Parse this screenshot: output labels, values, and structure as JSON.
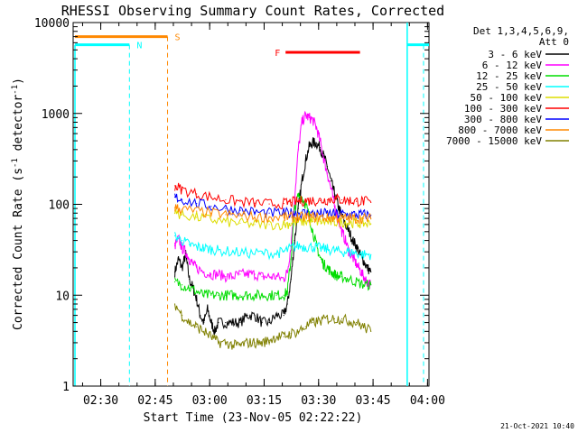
{
  "chart_data": {
    "type": "line",
    "title": "RHESSI Observing Summary Count Rates, Corrected",
    "xlabel": "Start Time (23-Nov-05 02:22:22)",
    "ylabel": "Corrected Count Rate (s",
    "ylabel_sup1": "-1",
    "ylabel_mid": " detector",
    "ylabel_sup2": "-1",
    "ylabel_end": ")",
    "x_unit": "minutes since 02:22:22",
    "xlim": [
      0,
      98
    ],
    "yscale": "log",
    "ylim": [
      1,
      10000
    ],
    "x_ticks": [
      {
        "label": "02:30",
        "value": 7.6
      },
      {
        "label": "02:45",
        "value": 22.6
      },
      {
        "label": "03:00",
        "value": 37.6
      },
      {
        "label": "03:15",
        "value": 52.6
      },
      {
        "label": "03:30",
        "value": 67.6
      },
      {
        "label": "03:45",
        "value": 82.6
      },
      {
        "label": "04:00",
        "value": 97.6
      }
    ],
    "y_ticks": [
      {
        "label": "1",
        "value": 1
      },
      {
        "label": "10",
        "value": 10
      },
      {
        "label": "100",
        "value": 100
      },
      {
        "label": "1000",
        "value": 1000
      },
      {
        "label": "10000",
        "value": 10000
      }
    ],
    "legend_header": [
      "Det 1,3,4,5,6,9,",
      "Att 0"
    ],
    "legend_position": "right",
    "timestamp": "21-Oct-2021 10:40",
    "series": [
      {
        "name": "3 - 6 keV",
        "color": "#000000",
        "x": [
          28,
          29,
          30,
          31,
          32,
          33,
          34,
          35,
          36,
          37,
          38,
          39,
          40,
          42,
          44,
          46,
          48,
          50,
          52,
          54,
          56,
          58,
          59,
          60,
          61,
          62,
          63,
          64,
          65,
          66,
          67,
          68,
          69,
          70,
          71,
          72,
          73,
          74,
          75,
          76,
          77,
          78,
          79,
          80,
          81,
          82
        ],
        "values": [
          18,
          25,
          20,
          28,
          15,
          12,
          9,
          6,
          5,
          7,
          5,
          4,
          5,
          5,
          5,
          5,
          6,
          6,
          5,
          5,
          6,
          6,
          8,
          15,
          40,
          90,
          180,
          300,
          430,
          480,
          470,
          420,
          340,
          260,
          180,
          130,
          95,
          75,
          60,
          50,
          40,
          35,
          28,
          24,
          20,
          18
        ]
      },
      {
        "name": "6 - 12 keV",
        "color": "#ff00ff",
        "x": [
          28,
          29,
          30,
          31,
          32,
          33,
          34,
          36,
          38,
          40,
          42,
          44,
          46,
          48,
          50,
          52,
          54,
          56,
          58,
          59,
          60,
          61,
          62,
          63,
          64,
          65,
          66,
          67,
          68,
          69,
          70,
          71,
          72,
          73,
          74,
          75,
          76,
          77,
          78,
          79,
          80,
          81,
          82
        ],
        "values": [
          35,
          42,
          33,
          30,
          25,
          22,
          20,
          18,
          17,
          17,
          16,
          16,
          17,
          17,
          17,
          16,
          16,
          16,
          15,
          18,
          35,
          120,
          400,
          800,
          950,
          900,
          850,
          700,
          500,
          320,
          220,
          150,
          95,
          70,
          50,
          40,
          30,
          26,
          22,
          19,
          16,
          14,
          13
        ]
      },
      {
        "name": "12 - 25 keV",
        "color": "#00dd00",
        "x": [
          28,
          30,
          32,
          34,
          36,
          38,
          40,
          42,
          44,
          46,
          48,
          50,
          52,
          54,
          56,
          58,
          59,
          60,
          61,
          62,
          63,
          64,
          65,
          66,
          67,
          68,
          69,
          70,
          71,
          72,
          73,
          74,
          76,
          78,
          80,
          82
        ],
        "values": [
          14,
          13,
          12,
          11,
          10,
          10,
          10,
          10,
          10,
          10,
          10,
          10,
          10,
          10,
          10,
          10,
          11,
          25,
          90,
          125,
          120,
          100,
          75,
          50,
          35,
          26,
          22,
          20,
          18,
          17,
          16,
          16,
          15,
          14,
          13,
          13
        ]
      },
      {
        "name": "25 - 50 keV",
        "color": "#00ffff",
        "x": [
          28,
          30,
          32,
          34,
          36,
          38,
          40,
          44,
          48,
          52,
          56,
          58,
          60,
          62,
          64,
          66,
          68,
          70,
          72,
          74,
          76,
          78,
          80,
          82
        ],
        "values": [
          45,
          40,
          36,
          34,
          33,
          32,
          31,
          30,
          29,
          29,
          29,
          30,
          33,
          35,
          34,
          34,
          33,
          32,
          31,
          30,
          30,
          29,
          28,
          28
        ]
      },
      {
        "name": "50 - 100 keV",
        "color": "#dddd00",
        "x": [
          28,
          30,
          34,
          38,
          42,
          46,
          50,
          54,
          58,
          60,
          62,
          64,
          66,
          68,
          70,
          72,
          74,
          76,
          78,
          80,
          82
        ],
        "values": [
          80,
          77,
          72,
          68,
          64,
          62,
          60,
          60,
          60,
          62,
          64,
          65,
          65,
          65,
          64,
          64,
          64,
          63,
          62,
          62,
          61
        ]
      },
      {
        "name": "100 - 300 keV",
        "color": "#ff0000",
        "x": [
          28,
          30,
          34,
          38,
          42,
          46,
          50,
          54,
          58,
          60,
          62,
          64,
          66,
          68,
          70,
          72,
          74,
          76,
          78,
          80,
          82
        ],
        "values": [
          160,
          145,
          130,
          120,
          112,
          107,
          103,
          101,
          102,
          105,
          108,
          110,
          110,
          110,
          112,
          115,
          112,
          110,
          108,
          108,
          105
        ]
      },
      {
        "name": "300 - 800 keV",
        "color": "#0000ff",
        "x": [
          28,
          30,
          34,
          38,
          42,
          46,
          50,
          54,
          58,
          60,
          62,
          64,
          66,
          68,
          70,
          72,
          74,
          76,
          78,
          80,
          82
        ],
        "values": [
          120,
          113,
          102,
          95,
          90,
          86,
          82,
          80,
          80,
          80,
          80,
          80,
          79,
          79,
          79,
          78,
          78,
          77,
          77,
          77,
          76
        ]
      },
      {
        "name": "800 - 7000 keV",
        "color": "#ff8800",
        "x": [
          28,
          30,
          34,
          38,
          42,
          46,
          50,
          54,
          58,
          60,
          62,
          64,
          66,
          68,
          70,
          72,
          74,
          76,
          78,
          80,
          82
        ],
        "values": [
          92,
          88,
          84,
          80,
          77,
          75,
          73,
          72,
          72,
          72,
          72,
          72,
          72,
          72,
          71,
          71,
          70,
          70,
          70,
          70,
          69
        ]
      },
      {
        "name": "7000 - 15000 keV",
        "color": "#808000",
        "x": [
          28,
          30,
          32,
          34,
          36,
          38,
          40,
          42,
          44,
          46,
          48,
          50,
          52,
          54,
          56,
          58,
          60,
          62,
          64,
          66,
          68,
          70,
          72,
          74,
          76,
          78,
          80,
          82
        ],
        "values": [
          8,
          6,
          5,
          4.5,
          4,
          3.5,
          3,
          3,
          2.8,
          2.8,
          3,
          3,
          3,
          3.2,
          3.5,
          3.5,
          3.8,
          4,
          4.5,
          5,
          5.2,
          5.5,
          5.5,
          5.5,
          5.2,
          5,
          4.5,
          4
        ]
      }
    ],
    "annotations": [
      {
        "label": "S",
        "color": "#ff8800",
        "x_start": 0.5,
        "x_end": 26,
        "y": 7000,
        "dashed_x": 26
      },
      {
        "label": "N",
        "color": "#00ffff",
        "x_start": 0.5,
        "x_end": 15.5,
        "y": 5700,
        "dashed_x": 15.5
      },
      {
        "label": "N",
        "color": "#00ffff",
        "x_start": 92,
        "x_end": 98,
        "y": 5700,
        "dashed_x": 96.5,
        "hide_label": true
      },
      {
        "label": "F",
        "color": "#ff0000",
        "x_start": 58.5,
        "x_end": 79,
        "y": 4700
      }
    ]
  }
}
